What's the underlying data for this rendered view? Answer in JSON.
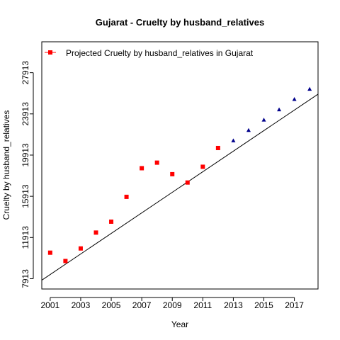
{
  "chart_data": {
    "type": "scatter",
    "title": "Gujarat  -  Cruelty by husband_relatives",
    "xlabel": "Year",
    "ylabel": "Cruelty by husband_relatives",
    "xlim": [
      2000.45,
      2018.55
    ],
    "ylim": [
      6913,
      30913
    ],
    "x_ticks": [
      2001,
      2003,
      2005,
      2007,
      2009,
      2011,
      2013,
      2015,
      2017
    ],
    "x_tick_labels": [
      "2001",
      "2003",
      "2005",
      "2007",
      "2009",
      "2011",
      "2013",
      "2015",
      "2017"
    ],
    "y_ticks": [
      7913,
      11913,
      15913,
      19913,
      23913,
      27913
    ],
    "y_tick_labels": [
      "7913",
      "11913",
      "15913",
      "19913",
      "23913",
      "27913"
    ],
    "grid": false,
    "legend_position": "top-left",
    "legend_label": "Projected  Cruelty by husband_relatives  in  Gujarat",
    "series": [
      {
        "marker": "square",
        "color": "#ff0000",
        "x": [
          2001,
          2002,
          2003,
          2004,
          2005,
          2006,
          2007,
          2008,
          2009,
          2010,
          2011,
          2012
        ],
        "y": [
          10440,
          9630,
          10850,
          12390,
          13450,
          15860,
          18640,
          19180,
          18060,
          17250,
          18780,
          20600
        ]
      },
      {
        "marker": "triangle",
        "color": "#00008b",
        "x": [
          2013,
          2014,
          2015,
          2016,
          2017,
          2018
        ],
        "y": [
          21330,
          22330,
          23340,
          24340,
          25340,
          26330
        ]
      }
    ],
    "trend_line": {
      "color": "#000000",
      "x": [
        2000.45,
        2018.55
      ],
      "y": [
        7770,
        25830
      ]
    }
  }
}
